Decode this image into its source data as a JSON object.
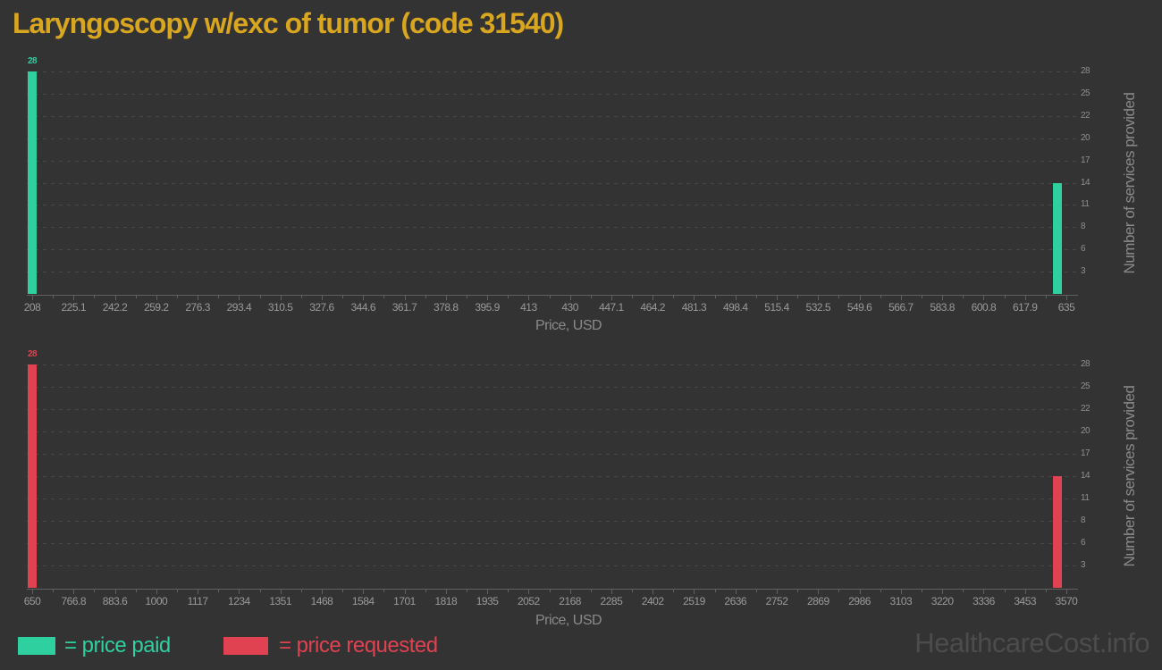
{
  "page": {
    "title": "Laryngoscopy w/exc of tumor (code 31540)",
    "watermark": "HealthcareCost.info"
  },
  "legend": {
    "paid_label": "= price paid",
    "requested_label": "= price requested"
  },
  "colors": {
    "background": "#333333",
    "title": "#d9a620",
    "paid": "#2ed0a0",
    "requested": "#e04252",
    "grid": "#484848",
    "axis": "#606060",
    "x_tick_label": "#9a9a9a",
    "y_tick_label": "#8f8f8f",
    "axis_title": "#8a8a8a",
    "watermark": "#4c4c4c"
  },
  "chart_data": [
    {
      "type": "bar",
      "name": "price-paid-histogram",
      "series": "price paid",
      "color_key": "paid",
      "xlabel": "Price, USD",
      "ylabel": "Number of services provided",
      "ylim": [
        0,
        28
      ],
      "grid": "horizontal-dashed",
      "y_axis_side": "right",
      "y_ticks": [
        3,
        6,
        8,
        11,
        14,
        17,
        20,
        22,
        25,
        28
      ],
      "x_ticks": [
        208,
        225.1,
        242.2,
        259.2,
        276.3,
        293.4,
        310.5,
        327.6,
        344.6,
        361.7,
        378.8,
        395.9,
        413,
        430,
        447.1,
        464.2,
        481.3,
        498.4,
        515.4,
        532.5,
        549.6,
        566.7,
        583.8,
        600.8,
        617.9,
        635
      ],
      "bars": [
        {
          "x": 208,
          "count": 28,
          "label": "28"
        },
        {
          "x": 635,
          "count": 14
        }
      ]
    },
    {
      "type": "bar",
      "name": "price-requested-histogram",
      "series": "price requested",
      "color_key": "requested",
      "xlabel": "Price, USD",
      "ylabel": "Number of services provided",
      "ylim": [
        0,
        28
      ],
      "grid": "horizontal-dashed",
      "y_axis_side": "right",
      "y_ticks": [
        3,
        6,
        8,
        11,
        14,
        17,
        20,
        22,
        25,
        28
      ],
      "x_ticks": [
        650,
        766.8,
        883.6,
        1000,
        1117,
        1234,
        1351,
        1468,
        1584,
        1701,
        1818,
        1935,
        2052,
        2168,
        2285,
        2402,
        2519,
        2636,
        2752,
        2869,
        2986,
        3103,
        3220,
        3336,
        3453,
        3570
      ],
      "bars": [
        {
          "x": 650,
          "count": 28,
          "label": "28"
        },
        {
          "x": 3570,
          "count": 14
        }
      ]
    }
  ]
}
